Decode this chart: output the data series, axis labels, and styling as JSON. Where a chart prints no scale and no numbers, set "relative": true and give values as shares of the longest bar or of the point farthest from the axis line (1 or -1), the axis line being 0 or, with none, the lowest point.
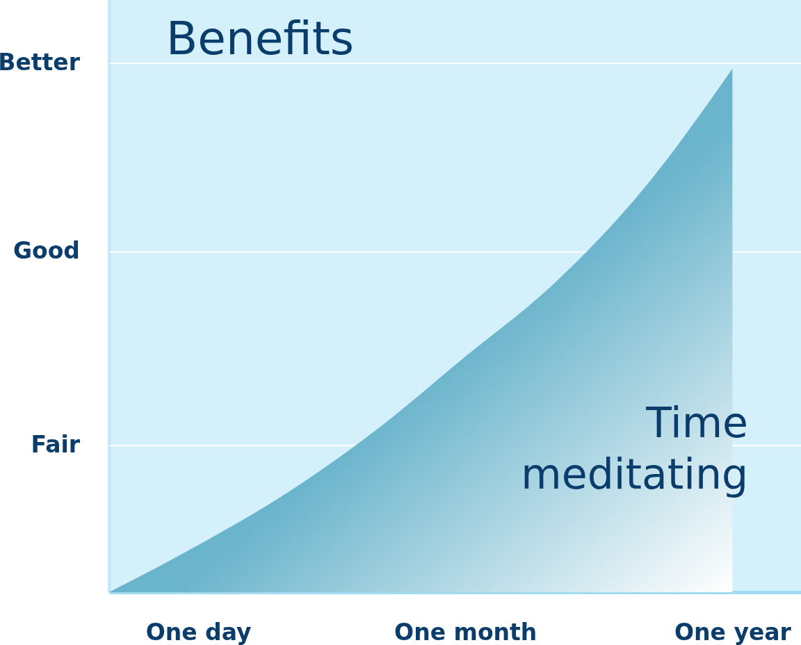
{
  "chart_data": {
    "type": "area",
    "xlabel": "Time meditating",
    "ylabel": "Benefits",
    "relative": true,
    "categories": [
      null,
      "One day",
      null,
      null,
      "One month",
      null,
      null,
      "One year"
    ],
    "series": [
      {
        "color": "#6ab4cc",
        "values": [
          0,
          0.09,
          0.19,
          0.31,
          0.45,
          0.59,
          0.77,
          1
        ]
      }
    ],
    "ref_lines": [
      {
        "axis": "y",
        "value": 0.28,
        "label": "Fair",
        "color": "#ffffff"
      },
      {
        "axis": "y",
        "value": 0.65,
        "label": "Good",
        "color": "#ffffff"
      },
      {
        "axis": "y",
        "value": 1.01,
        "label": "Better",
        "color": "#ffffff"
      }
    ]
  }
}
